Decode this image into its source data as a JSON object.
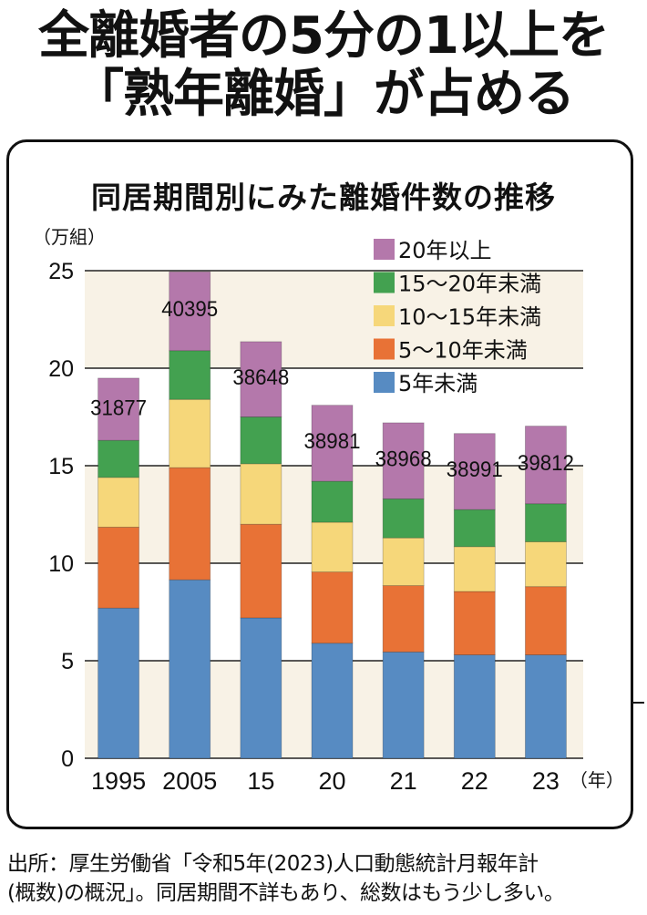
{
  "headline": {
    "line1": "全離婚者の5分の1以上を",
    "line2": "「熟年離婚」が占める"
  },
  "footer": {
    "line1": "出所：厚生労働省「令和5年(2023)人口動態統計月報年計",
    "line2": "(概数)の概況」。同居期間不詳もあり、総数はもう少し多い。"
  },
  "chart_data": {
    "type": "bar",
    "stacked": true,
    "title": "同居期間別にみた離婚件数の推移",
    "ylabel": "（万組）",
    "xlabel": "（年）",
    "ylim": [
      0,
      25
    ],
    "yticks": [
      0,
      5,
      10,
      15,
      20,
      25
    ],
    "grid": true,
    "legend_position": "top-right",
    "categories": [
      "1995",
      "2005",
      "15",
      "20",
      "21",
      "22",
      "23"
    ],
    "series": [
      {
        "name": "5年未満",
        "color": "#578bc2",
        "values": [
          7.7,
          9.15,
          7.2,
          5.9,
          5.45,
          5.3,
          5.3
        ]
      },
      {
        "name": "5〜10年未満",
        "color": "#e87236",
        "values": [
          4.15,
          5.75,
          4.8,
          3.65,
          3.4,
          3.25,
          3.5
        ]
      },
      {
        "name": "10〜15年未満",
        "color": "#f6d77a",
        "values": [
          2.55,
          3.5,
          3.1,
          2.55,
          2.45,
          2.3,
          2.3
        ]
      },
      {
        "name": "15〜20年未満",
        "color": "#43a150",
        "values": [
          1.9,
          2.5,
          2.4,
          2.1,
          2.0,
          1.9,
          1.95
        ]
      },
      {
        "name": "20年以上",
        "color": "#b478ab",
        "values": [
          3.19,
          4.04,
          3.86,
          3.9,
          3.9,
          3.9,
          3.98
        ]
      }
    ],
    "annotations": [
      "31877",
      "40395",
      "38648",
      "38981",
      "38968",
      "38991",
      "39812"
    ],
    "legend": [
      "20年以上",
      "15〜20年未満",
      "10〜15年未満",
      "5〜10年未満",
      "5年未満"
    ],
    "band_color": "#f8f2e6"
  }
}
